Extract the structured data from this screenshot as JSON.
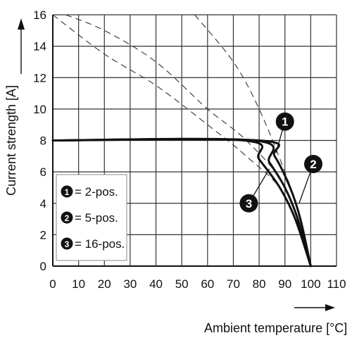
{
  "chart_data": {
    "type": "line",
    "xlabel": "Ambient temperature [°C]",
    "ylabel": "Current strength [A]",
    "xlim": [
      0,
      110
    ],
    "ylim": [
      0,
      16
    ],
    "x_ticks": [
      "0",
      "10",
      "20",
      "30",
      "40",
      "50",
      "60",
      "70",
      "80",
      "90",
      "100",
      "110"
    ],
    "y_ticks": [
      "0",
      "2",
      "4",
      "6",
      "8",
      "10",
      "12",
      "14",
      "16"
    ],
    "grid": true,
    "legend_position": "bottom-left",
    "series": [
      {
        "marker": "1",
        "name": "= 2-pos.",
        "derating": [
          [
            0,
            8
          ],
          [
            80,
            8
          ],
          [
            86,
            7
          ],
          [
            92,
            5
          ],
          [
            96,
            3
          ],
          [
            100,
            0
          ]
        ],
        "theoretical": [
          [
            55,
            16
          ],
          [
            70,
            13
          ],
          [
            80,
            10
          ],
          [
            90,
            6
          ],
          [
            95,
            3.5
          ],
          [
            100,
            0
          ]
        ]
      },
      {
        "marker": "2",
        "name": "= 5-pos.",
        "derating": [
          [
            0,
            8
          ],
          [
            78,
            8
          ],
          [
            84,
            6.6
          ],
          [
            90,
            5
          ],
          [
            95,
            3
          ],
          [
            100,
            0
          ]
        ],
        "theoretical": [
          [
            5,
            16
          ],
          [
            20,
            15
          ],
          [
            40,
            13
          ],
          [
            60,
            10
          ],
          [
            75,
            8
          ],
          [
            90,
            5
          ],
          [
            100,
            0
          ]
        ]
      },
      {
        "marker": "3",
        "name": "= 16-pos.",
        "derating": [
          [
            0,
            8
          ],
          [
            74,
            8
          ],
          [
            80,
            6.8
          ],
          [
            88,
            5
          ],
          [
            94,
            3
          ],
          [
            100,
            0
          ]
        ],
        "theoretical": [
          [
            0,
            16
          ],
          [
            20,
            13.5
          ],
          [
            40,
            11.5
          ],
          [
            60,
            9
          ],
          [
            75,
            7
          ],
          [
            90,
            4.5
          ],
          [
            100,
            0
          ]
        ]
      }
    ],
    "annotations": [
      {
        "label": "1",
        "at": [
          90,
          9.2
        ],
        "points_to": [
          86.5,
          7.2
        ]
      },
      {
        "label": "2",
        "at": [
          101,
          6.5
        ],
        "points_to": [
          95.5,
          4
        ]
      },
      {
        "label": "3",
        "at": [
          76,
          4
        ],
        "points_to": [
          84,
          6.2
        ]
      }
    ]
  }
}
